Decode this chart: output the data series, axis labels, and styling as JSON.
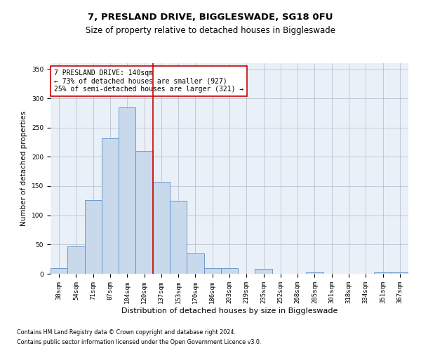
{
  "title": "7, PRESLAND DRIVE, BIGGLESWADE, SG18 0FU",
  "subtitle": "Size of property relative to detached houses in Biggleswade",
  "xlabel": "Distribution of detached houses by size in Biggleswade",
  "ylabel": "Number of detached properties",
  "categories": [
    "38sqm",
    "54sqm",
    "71sqm",
    "87sqm",
    "104sqm",
    "120sqm",
    "137sqm",
    "153sqm",
    "170sqm",
    "186sqm",
    "203sqm",
    "219sqm",
    "235sqm",
    "252sqm",
    "268sqm",
    "285sqm",
    "301sqm",
    "318sqm",
    "334sqm",
    "351sqm",
    "367sqm"
  ],
  "values": [
    10,
    47,
    126,
    232,
    284,
    210,
    157,
    125,
    35,
    10,
    10,
    0,
    8,
    0,
    0,
    2,
    0,
    0,
    0,
    2,
    2
  ],
  "bar_color": "#c9d9ec",
  "bar_edge_color": "#5b8fc9",
  "vline_x_index": 5.5,
  "vline_color": "#cc0000",
  "annotation_text": "7 PRESLAND DRIVE: 140sqm\n← 73% of detached houses are smaller (927)\n25% of semi-detached houses are larger (321) →",
  "annotation_box_color": "#ffffff",
  "annotation_box_edge_color": "#cc0000",
  "ylim": [
    0,
    360
  ],
  "yticks": [
    0,
    50,
    100,
    150,
    200,
    250,
    300,
    350
  ],
  "bg_color": "#eaf0f8",
  "footer_line1": "Contains HM Land Registry data © Crown copyright and database right 2024.",
  "footer_line2": "Contains public sector information licensed under the Open Government Licence v3.0.",
  "title_fontsize": 9.5,
  "subtitle_fontsize": 8.5,
  "xlabel_fontsize": 8,
  "ylabel_fontsize": 7.5,
  "tick_fontsize": 6.5,
  "annotation_fontsize": 7,
  "footer_fontsize": 5.8
}
